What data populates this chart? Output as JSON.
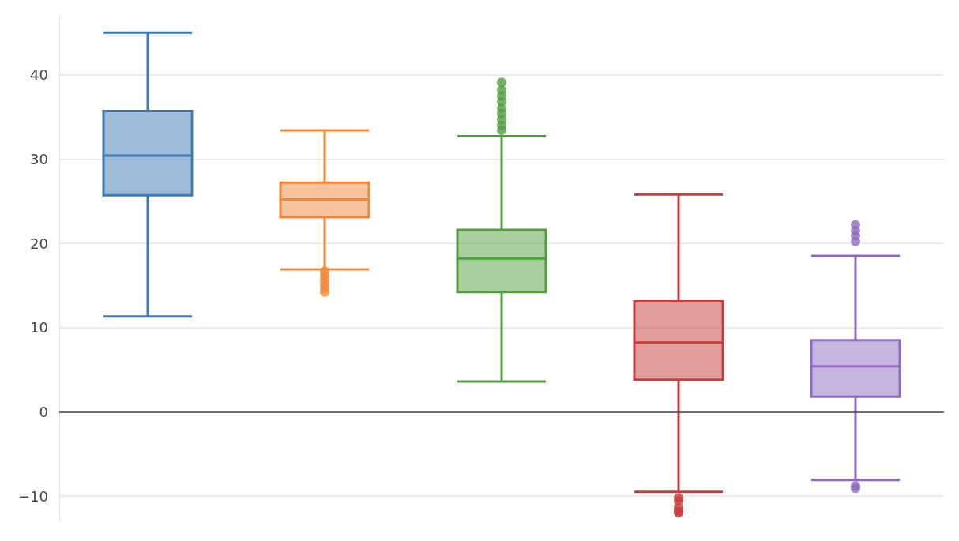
{
  "chart_data": {
    "type": "box",
    "categories": [
      null,
      null,
      null,
      null,
      null
    ],
    "colors": [
      "#3e7ab4",
      "#f0883a",
      "#519e3e",
      "#c63d3b",
      "#8e6bbd"
    ],
    "boxes": [
      {
        "low": 11.3,
        "q1": 25.7,
        "median": 30.4,
        "q3": 35.7,
        "high": 45.0
      },
      {
        "low": 16.9,
        "q1": 23.1,
        "median": 25.2,
        "q3": 27.2,
        "high": 33.4,
        "outliers": [
          16.7,
          16.2,
          15.7,
          15.2,
          14.7,
          14.2
        ]
      },
      {
        "low": 3.6,
        "q1": 14.2,
        "median": 18.2,
        "q3": 21.6,
        "high": 32.7,
        "outliers": [
          39.1,
          38.2,
          37.5,
          36.8,
          36.0,
          35.4,
          34.7,
          34.0,
          33.4
        ]
      },
      {
        "low": -9.5,
        "q1": 3.8,
        "median": 8.2,
        "q3": 13.1,
        "high": 25.8,
        "outliers": [
          -10.2,
          -10.6,
          -11.4,
          -11.8,
          -12.0
        ]
      },
      {
        "low": -8.1,
        "q1": 1.8,
        "median": 5.4,
        "q3": 8.5,
        "high": 18.5,
        "outliers": [
          22.2,
          21.5,
          20.9,
          20.2,
          -8.8,
          -9.1
        ]
      }
    ],
    "ylim": [
      -13,
      47
    ],
    "yticks": [
      -10,
      0,
      10,
      20,
      30,
      40
    ],
    "grid": "y",
    "ref_lines": [
      {
        "axis": "y",
        "value": 0,
        "color": "#444444"
      }
    ]
  }
}
